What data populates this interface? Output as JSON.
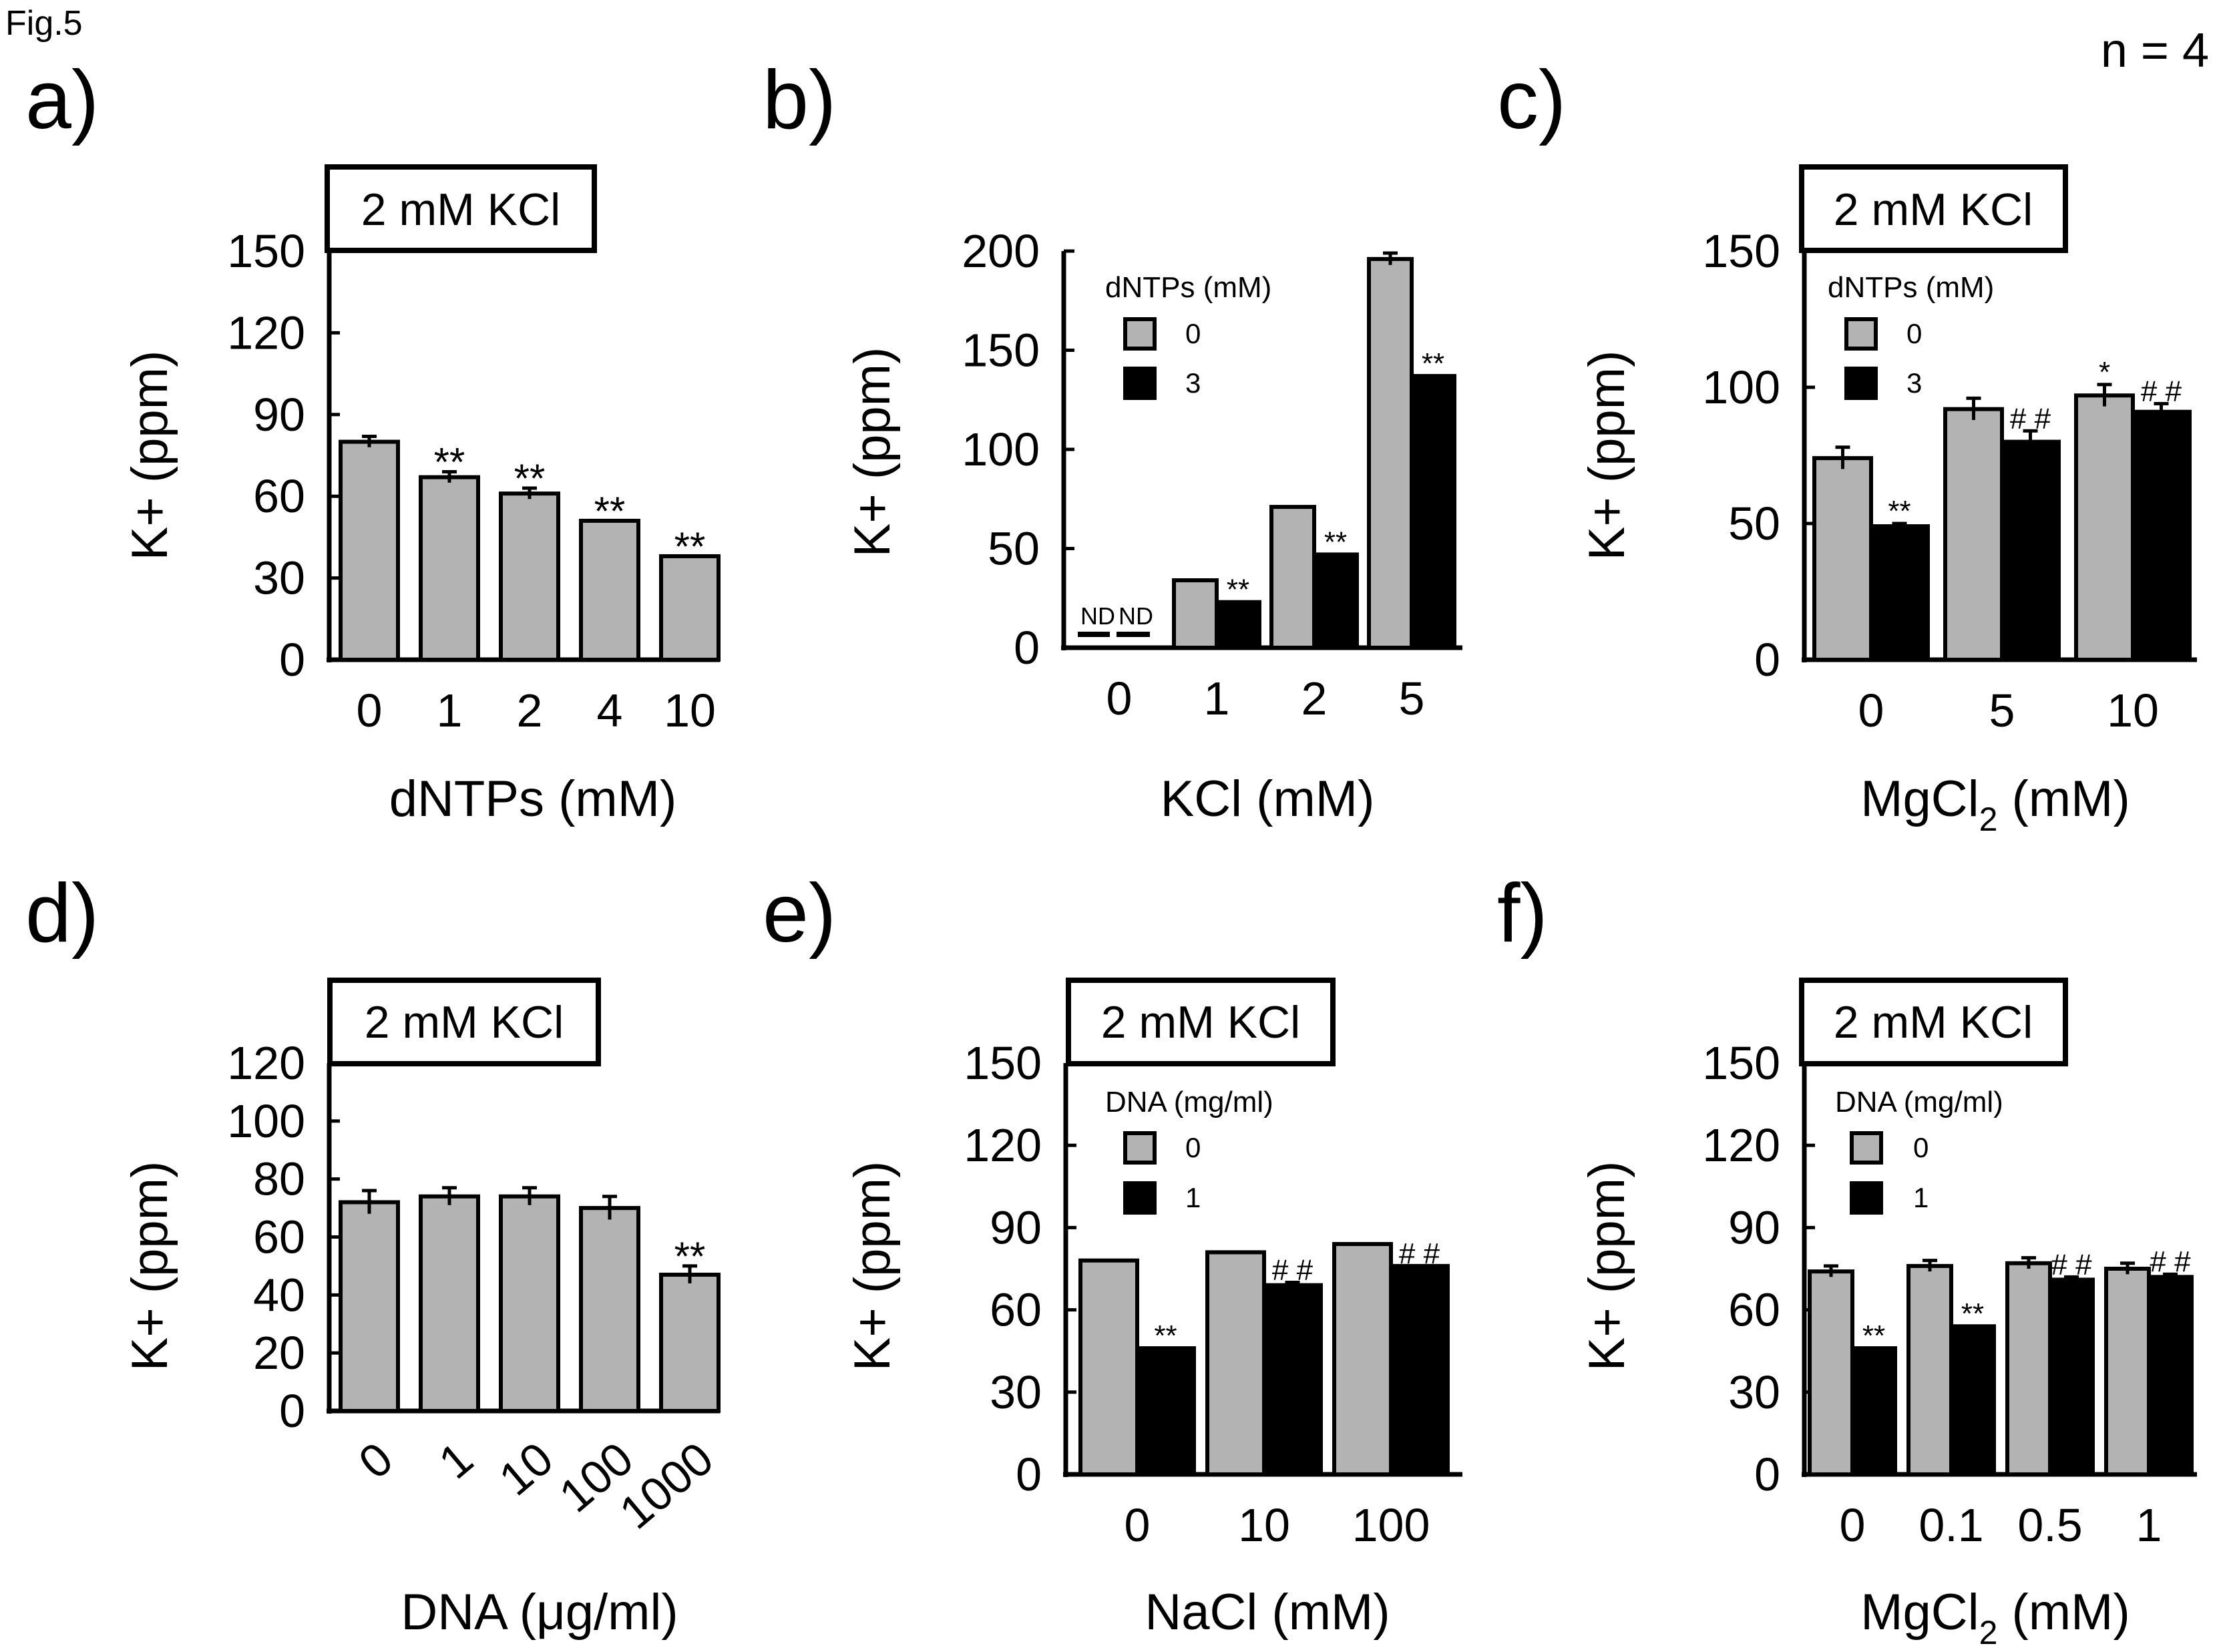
{
  "figure_label": "Fig.5",
  "n_label": "n = 4",
  "colors": {
    "gray_bar": "#b3b3b3",
    "black_bar": "#000000",
    "stroke": "#000000"
  },
  "chart_data": [
    {
      "panel": "a)",
      "type": "bar",
      "box_label": "2 mM KCl",
      "ylabel": "K+ (ppm)",
      "xlabel": "dNTPs (mM)",
      "ylim": [
        0,
        150
      ],
      "yticks": [
        "0",
        "30",
        "60",
        "90",
        "120",
        "150"
      ],
      "categories": [
        "0",
        "1",
        "2",
        "4",
        "10"
      ],
      "series": [
        {
          "name": "",
          "color": "gray",
          "values": [
            80,
            67,
            61,
            51,
            38
          ],
          "errors": [
            2,
            2,
            2,
            0,
            0
          ],
          "annotations": [
            "",
            "**",
            "**",
            "**",
            "**"
          ]
        }
      ]
    },
    {
      "panel": "b)",
      "type": "bar",
      "ylabel": "K+ (ppm)",
      "xlabel": "KCl (mM)",
      "ylim": [
        0,
        200
      ],
      "yticks": [
        "0",
        "50",
        "100",
        "150",
        "200"
      ],
      "categories": [
        "0",
        "1",
        "2",
        "5"
      ],
      "legend": {
        "title": "dNTPs (mM)",
        "items": [
          "0",
          "3"
        ]
      },
      "nd_labels": [
        "ND",
        "ND"
      ],
      "series": [
        {
          "name": "0",
          "color": "gray",
          "values": [
            0,
            34,
            71,
            196
          ],
          "errors": [
            0,
            0,
            0,
            3
          ],
          "annotations": [
            "",
            "",
            "",
            ""
          ]
        },
        {
          "name": "3",
          "color": "black",
          "values": [
            0,
            23,
            47,
            137
          ],
          "errors": [
            0,
            0,
            0,
            0
          ],
          "annotations": [
            "",
            "**",
            "**",
            "**"
          ]
        }
      ]
    },
    {
      "panel": "c)",
      "type": "bar",
      "box_label": "2 mM KCl",
      "ylabel": "K+ (ppm)",
      "xlabel": "MgCl",
      "xlabel_sub": "2",
      "xlabel_tail": " (mM)",
      "ylim": [
        0,
        150
      ],
      "yticks": [
        "0",
        "50",
        "100",
        "150"
      ],
      "ytick_values": [
        0,
        50,
        100,
        150
      ],
      "categories": [
        "0",
        "5",
        "10"
      ],
      "legend": {
        "title": "dNTPs (mM)",
        "items": [
          "0",
          "3"
        ]
      },
      "series": [
        {
          "name": "0",
          "color": "gray",
          "values": [
            74,
            92,
            97
          ],
          "errors": [
            4,
            4,
            4
          ],
          "annotations": [
            "",
            "",
            "*"
          ]
        },
        {
          "name": "3",
          "color": "black",
          "values": [
            49,
            80,
            91
          ],
          "errors": [
            1,
            4,
            3
          ],
          "annotations": [
            "**",
            "# #",
            "# #"
          ]
        }
      ]
    },
    {
      "panel": "d)",
      "type": "bar",
      "box_label": "2 mM KCl",
      "ylabel": "K+ (ppm)",
      "xlabel": "DNA (μg/ml)",
      "ylim": [
        0,
        120
      ],
      "yticks": [
        "0",
        "20",
        "40",
        "60",
        "80",
        "100",
        "120"
      ],
      "categories": [
        "0",
        "1",
        "10",
        "100",
        "1000"
      ],
      "series": [
        {
          "name": "",
          "color": "gray",
          "values": [
            72,
            74,
            74,
            70,
            47
          ],
          "errors": [
            4,
            3,
            3,
            4,
            3
          ],
          "annotations": [
            "",
            "",
            "",
            "",
            "**"
          ]
        }
      ]
    },
    {
      "panel": "e)",
      "type": "bar",
      "box_label": "2 mM KCl",
      "ylabel": "K+ (ppm)",
      "xlabel": "NaCl (mM)",
      "ylim": [
        0,
        150
      ],
      "yticks": [
        "0",
        "30",
        "60",
        "90",
        "120",
        "150"
      ],
      "categories": [
        "0",
        "10",
        "100"
      ],
      "legend": {
        "title": "DNA (mg/ml)",
        "items": [
          "0",
          "1"
        ]
      },
      "series": [
        {
          "name": "0",
          "color": "gray",
          "values": [
            78,
            81,
            84
          ],
          "errors": [
            0,
            0,
            0
          ],
          "annotations": [
            "",
            "",
            ""
          ]
        },
        {
          "name": "1",
          "color": "black",
          "values": [
            46,
            69,
            76
          ],
          "errors": [
            0,
            1,
            0
          ],
          "annotations": [
            "**",
            "# #",
            "# #"
          ]
        }
      ]
    },
    {
      "panel": "f)",
      "type": "bar",
      "box_label": "2 mM KCl",
      "ylabel": "K+ (ppm)",
      "xlabel": "MgCl",
      "xlabel_sub": "2",
      "xlabel_tail": " (mM)",
      "ylim": [
        0,
        150
      ],
      "yticks": [
        "0",
        "30",
        "60",
        "90",
        "120",
        "150"
      ],
      "categories": [
        "0",
        "0.1",
        "0.5",
        "1"
      ],
      "legend": {
        "title": "DNA (mg/ml)",
        "items": [
          "0",
          "1"
        ]
      },
      "series": [
        {
          "name": "0",
          "color": "gray",
          "values": [
            74,
            76,
            77,
            75
          ],
          "errors": [
            2,
            2,
            2,
            2
          ],
          "annotations": [
            "",
            "",
            "",
            ""
          ]
        },
        {
          "name": "1",
          "color": "black",
          "values": [
            46,
            54,
            71,
            72
          ],
          "errors": [
            0,
            0,
            1,
            1
          ],
          "annotations": [
            "**",
            "**",
            "# #",
            "# #"
          ]
        }
      ]
    }
  ]
}
